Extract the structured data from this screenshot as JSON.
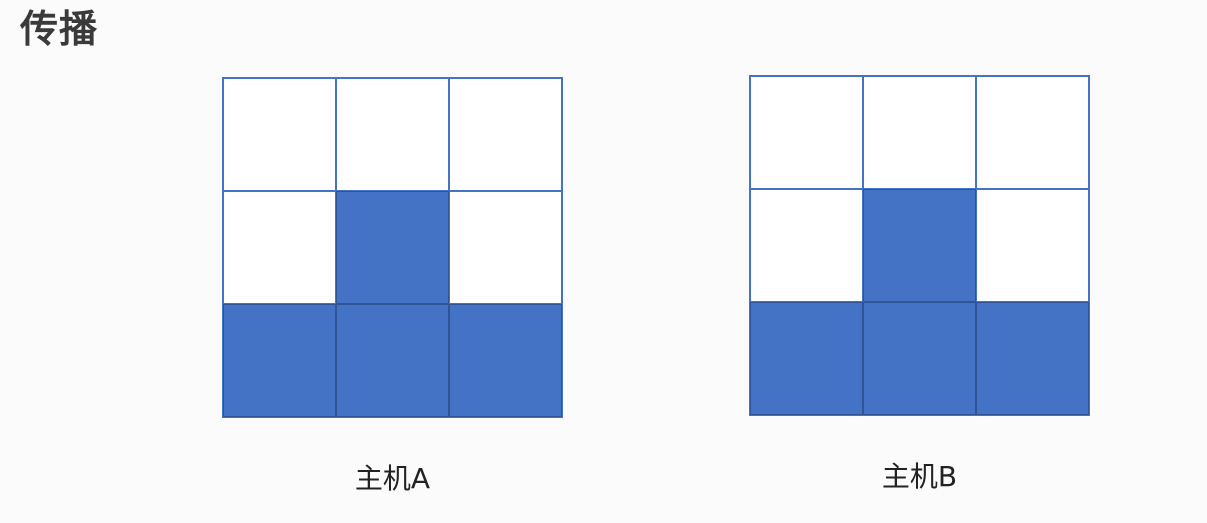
{
  "title": "传播",
  "hosts": [
    {
      "label": "主机A",
      "cells": [
        [
          false,
          false,
          false
        ],
        [
          false,
          true,
          false
        ],
        [
          true,
          true,
          true
        ]
      ]
    },
    {
      "label": "主机B",
      "cells": [
        [
          false,
          false,
          false
        ],
        [
          false,
          true,
          false
        ],
        [
          true,
          true,
          true
        ]
      ]
    }
  ],
  "colors": {
    "filled": "#4472c4",
    "border": "#4472c4",
    "empty": "#ffffff"
  }
}
